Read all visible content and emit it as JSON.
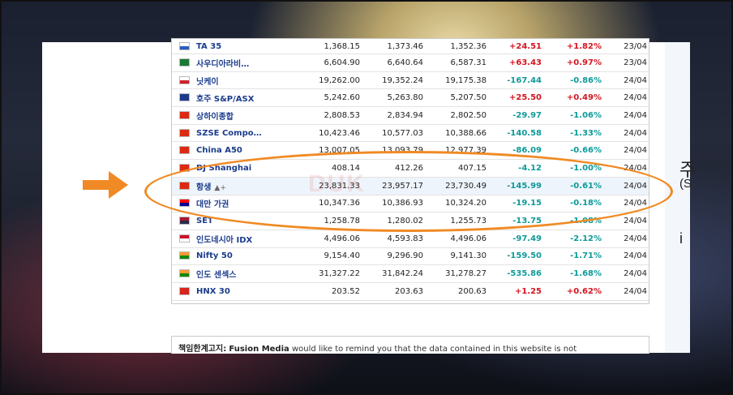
{
  "side_text": [
    "주",
    "(S",
    "i"
  ],
  "watermark": "DUK",
  "rows": [
    {
      "name": "TA 35",
      "flag": [
        "#ffffff",
        "#2a5dbf"
      ],
      "last": "1,368.15",
      "high": "1,373.46",
      "low": "1,352.36",
      "chg": "+24.51",
      "pct": "+1.82%",
      "date": "23/04",
      "dir": "pos"
    },
    {
      "name": "사우디아라비…",
      "flag": [
        "#1a7a35",
        "#1a7a35"
      ],
      "last": "6,604.90",
      "high": "6,640.64",
      "low": "6,587.31",
      "chg": "+63.43",
      "pct": "+0.97%",
      "date": "23/04",
      "dir": "pos"
    },
    {
      "name": "닛케이",
      "flag": [
        "#ffffff",
        "#d0202a"
      ],
      "last": "19,262.00",
      "high": "19,352.24",
      "low": "19,175.38",
      "chg": "-167.44",
      "pct": "-0.86%",
      "date": "24/04",
      "dir": "neg"
    },
    {
      "name": "호주 S&P/ASX",
      "flag": [
        "#1e3a8a",
        "#1e3a8a"
      ],
      "last": "5,242.60",
      "high": "5,263.80",
      "low": "5,207.50",
      "chg": "+25.50",
      "pct": "+0.49%",
      "date": "24/04",
      "dir": "pos"
    },
    {
      "name": "상하이종합",
      "flag": [
        "#de2910",
        "#de2910"
      ],
      "last": "2,808.53",
      "high": "2,834.94",
      "low": "2,802.50",
      "chg": "-29.97",
      "pct": "-1.06%",
      "date": "24/04",
      "dir": "neg"
    },
    {
      "name": "SZSE Compo…",
      "flag": [
        "#de2910",
        "#de2910"
      ],
      "last": "10,423.46",
      "high": "10,577.03",
      "low": "10,388.66",
      "chg": "-140.58",
      "pct": "-1.33%",
      "date": "24/04",
      "dir": "neg"
    },
    {
      "name": "China A50",
      "flag": [
        "#de2910",
        "#de2910"
      ],
      "last": "13,007.05",
      "high": "13,093.79",
      "low": "12,977.39",
      "chg": "-86.09",
      "pct": "-0.66%",
      "date": "24/04",
      "dir": "neg"
    },
    {
      "name": "DJ Shanghai",
      "flag": [
        "#de2910",
        "#de2910"
      ],
      "last": "408.14",
      "high": "412.26",
      "low": "407.15",
      "chg": "-4.12",
      "pct": "-1.00%",
      "date": "24/04",
      "dir": "neg"
    },
    {
      "name": "항생",
      "flag": [
        "#de2910",
        "#de2910"
      ],
      "bell": "▲+",
      "last": "23,831.33",
      "high": "23,957.17",
      "low": "23,730.49",
      "chg": "-145.99",
      "pct": "-0.61%",
      "date": "24/04",
      "dir": "neg",
      "hl": true
    },
    {
      "name": "대만 가권",
      "flag": [
        "#fe0000",
        "#000095"
      ],
      "last": "10,347.36",
      "high": "10,386.93",
      "low": "10,324.20",
      "chg": "-19.15",
      "pct": "-0.18%",
      "date": "24/04",
      "dir": "neg"
    },
    {
      "name": "SET",
      "flag": [
        "#a51931",
        "#2d2a4a"
      ],
      "last": "1,258.78",
      "high": "1,280.02",
      "low": "1,255.73",
      "chg": "-13.75",
      "pct": "-1.08%",
      "date": "24/04",
      "dir": "neg"
    },
    {
      "name": "인도네시아 IDX",
      "flag": [
        "#ce1126",
        "#ffffff"
      ],
      "last": "4,496.06",
      "high": "4,593.83",
      "low": "4,496.06",
      "chg": "-97.49",
      "pct": "-2.12%",
      "date": "24/04",
      "dir": "neg"
    },
    {
      "name": "Nifty 50",
      "flag": [
        "#ff9933",
        "#138808"
      ],
      "last": "9,154.40",
      "high": "9,296.90",
      "low": "9,141.30",
      "chg": "-159.50",
      "pct": "-1.71%",
      "date": "24/04",
      "dir": "neg"
    },
    {
      "name": "인도 센섹스",
      "flag": [
        "#ff9933",
        "#138808"
      ],
      "last": "31,327.22",
      "high": "31,842.24",
      "low": "31,278.27",
      "chg": "-535.86",
      "pct": "-1.68%",
      "date": "24/04",
      "dir": "neg"
    },
    {
      "name": "HNX 30",
      "flag": [
        "#da251d",
        "#da251d"
      ],
      "last": "203.52",
      "high": "203.63",
      "low": "200.63",
      "chg": "+1.25",
      "pct": "+0.62%",
      "date": "24/04",
      "dir": "pos"
    }
  ],
  "disclaimer": {
    "label": "책임한계고지:",
    "company": "Fusion Media",
    "text": " would like to remind you that the data contained in this website is not"
  },
  "colors": {
    "positive": "#d4141f",
    "negative": "#0e9a9a",
    "highlight_ellipse": "#f08a24",
    "arrow": "#f08a24"
  }
}
